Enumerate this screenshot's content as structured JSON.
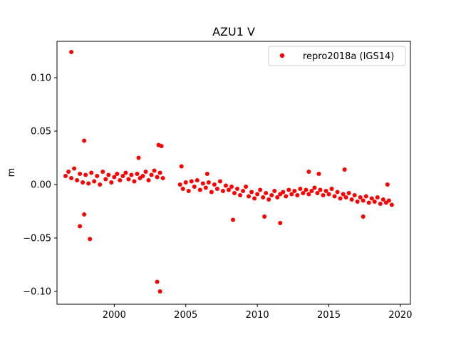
{
  "chart_data": {
    "type": "scatter",
    "title": "AZU1 V",
    "xlabel": "",
    "ylabel": "m",
    "xlim": [
      1996.0,
      2020.7
    ],
    "ylim": [
      -0.112,
      0.134
    ],
    "xticks": [
      2000,
      2005,
      2010,
      2015,
      2020
    ],
    "xtick_labels": [
      "2000",
      "2005",
      "2010",
      "2015",
      "2020"
    ],
    "yticks": [
      -0.1,
      -0.05,
      0.0,
      0.05,
      0.1
    ],
    "ytick_labels": [
      "−0.10",
      "−0.05",
      "0.00",
      "0.05",
      "0.10"
    ],
    "grid": false,
    "legend_position": "upper right",
    "series": [
      {
        "name": "repro2018a (IGS14)",
        "color": "#ff0000",
        "marker": "circle",
        "points": [
          [
            1996.6,
            0.008
          ],
          [
            1996.8,
            0.012
          ],
          [
            1997.0,
            0.006
          ],
          [
            1997.2,
            0.015
          ],
          [
            1997.4,
            0.004
          ],
          [
            1997.6,
            0.01
          ],
          [
            1997.8,
            0.002
          ],
          [
            1998.0,
            0.009
          ],
          [
            1998.2,
            0.001
          ],
          [
            1998.4,
            0.011
          ],
          [
            1998.6,
            0.003
          ],
          [
            1998.8,
            0.008
          ],
          [
            1999.0,
            0.0
          ],
          [
            1999.2,
            0.012
          ],
          [
            1999.4,
            0.005
          ],
          [
            1999.6,
            0.009
          ],
          [
            1999.8,
            0.002
          ],
          [
            2000.0,
            0.007
          ],
          [
            2000.2,
            0.01
          ],
          [
            2000.4,
            0.004
          ],
          [
            2000.6,
            0.008
          ],
          [
            2000.8,
            0.011
          ],
          [
            2001.0,
            0.005
          ],
          [
            2001.2,
            0.009
          ],
          [
            2001.4,
            0.003
          ],
          [
            2001.6,
            0.01
          ],
          [
            2001.8,
            0.006
          ],
          [
            2002.0,
            0.008
          ],
          [
            2002.2,
            0.012
          ],
          [
            2002.4,
            0.004
          ],
          [
            2002.6,
            0.009
          ],
          [
            2002.8,
            0.013
          ],
          [
            2003.0,
            0.007
          ],
          [
            2003.2,
            0.011
          ],
          [
            2003.4,
            0.006
          ],
          [
            1997.0,
            0.124
          ],
          [
            1997.9,
            0.041
          ],
          [
            1997.9,
            -0.028
          ],
          [
            1997.6,
            -0.039
          ],
          [
            1998.3,
            -0.051
          ],
          [
            2003.0,
            -0.091
          ],
          [
            2003.2,
            -0.1
          ],
          [
            2003.1,
            0.037
          ],
          [
            2003.3,
            0.036
          ],
          [
            2001.7,
            0.025
          ],
          [
            2004.6,
            0.0
          ],
          [
            2004.8,
            -0.004
          ],
          [
            2005.0,
            0.002
          ],
          [
            2005.2,
            -0.006
          ],
          [
            2005.4,
            0.003
          ],
          [
            2005.6,
            -0.002
          ],
          [
            2005.8,
            0.004
          ],
          [
            2006.0,
            -0.005
          ],
          [
            2006.2,
            0.001
          ],
          [
            2006.4,
            -0.003
          ],
          [
            2006.6,
            0.002
          ],
          [
            2006.8,
            -0.007
          ],
          [
            2007.0,
            0.0
          ],
          [
            2007.2,
            -0.004
          ],
          [
            2007.4,
            0.003
          ],
          [
            2007.6,
            -0.006
          ],
          [
            2007.8,
            -0.001
          ],
          [
            2008.0,
            -0.005
          ],
          [
            2008.2,
            -0.002
          ],
          [
            2008.4,
            -0.008
          ],
          [
            2008.6,
            -0.004
          ],
          [
            2008.8,
            -0.01
          ],
          [
            2009.0,
            -0.006
          ],
          [
            2009.2,
            -0.002
          ],
          [
            2009.4,
            -0.011
          ],
          [
            2009.6,
            -0.007
          ],
          [
            2009.8,
            -0.013
          ],
          [
            2010.0,
            -0.009
          ],
          [
            2010.2,
            -0.005
          ],
          [
            2010.4,
            -0.012
          ],
          [
            2010.6,
            -0.008
          ],
          [
            2010.8,
            -0.014
          ],
          [
            2011.0,
            -0.01
          ],
          [
            2011.2,
            -0.006
          ],
          [
            2011.4,
            -0.012
          ],
          [
            2011.6,
            -0.009
          ],
          [
            2011.8,
            -0.007
          ],
          [
            2012.0,
            -0.011
          ],
          [
            2012.2,
            -0.005
          ],
          [
            2012.4,
            -0.009
          ],
          [
            2012.6,
            -0.006
          ],
          [
            2012.8,
            -0.01
          ],
          [
            2013.0,
            -0.004
          ],
          [
            2013.2,
            -0.008
          ],
          [
            2013.4,
            -0.005
          ],
          [
            2013.6,
            -0.009
          ],
          [
            2013.8,
            -0.006
          ],
          [
            2014.0,
            -0.003
          ],
          [
            2014.2,
            -0.008
          ],
          [
            2014.4,
            -0.005
          ],
          [
            2014.6,
            -0.01
          ],
          [
            2014.8,
            -0.006
          ],
          [
            2015.0,
            -0.009
          ],
          [
            2015.2,
            -0.004
          ],
          [
            2015.4,
            -0.011
          ],
          [
            2015.6,
            -0.007
          ],
          [
            2015.8,
            -0.013
          ],
          [
            2016.0,
            -0.009
          ],
          [
            2016.2,
            -0.012
          ],
          [
            2016.4,
            -0.008
          ],
          [
            2016.6,
            -0.014
          ],
          [
            2016.8,
            -0.01
          ],
          [
            2017.0,
            -0.016
          ],
          [
            2017.2,
            -0.012
          ],
          [
            2017.4,
            -0.015
          ],
          [
            2017.6,
            -0.011
          ],
          [
            2017.8,
            -0.017
          ],
          [
            2018.0,
            -0.013
          ],
          [
            2018.2,
            -0.016
          ],
          [
            2018.4,
            -0.012
          ],
          [
            2018.6,
            -0.018
          ],
          [
            2018.8,
            -0.014
          ],
          [
            2019.0,
            -0.017
          ],
          [
            2019.2,
            -0.015
          ],
          [
            2019.4,
            -0.019
          ],
          [
            2004.7,
            0.017
          ],
          [
            2008.3,
            -0.033
          ],
          [
            2011.6,
            -0.036
          ],
          [
            2013.6,
            0.012
          ],
          [
            2016.1,
            0.014
          ],
          [
            2019.1,
            0.0
          ],
          [
            2017.4,
            -0.03
          ],
          [
            2006.5,
            0.01
          ],
          [
            2010.5,
            -0.03
          ],
          [
            2014.3,
            0.01
          ]
        ]
      }
    ]
  }
}
